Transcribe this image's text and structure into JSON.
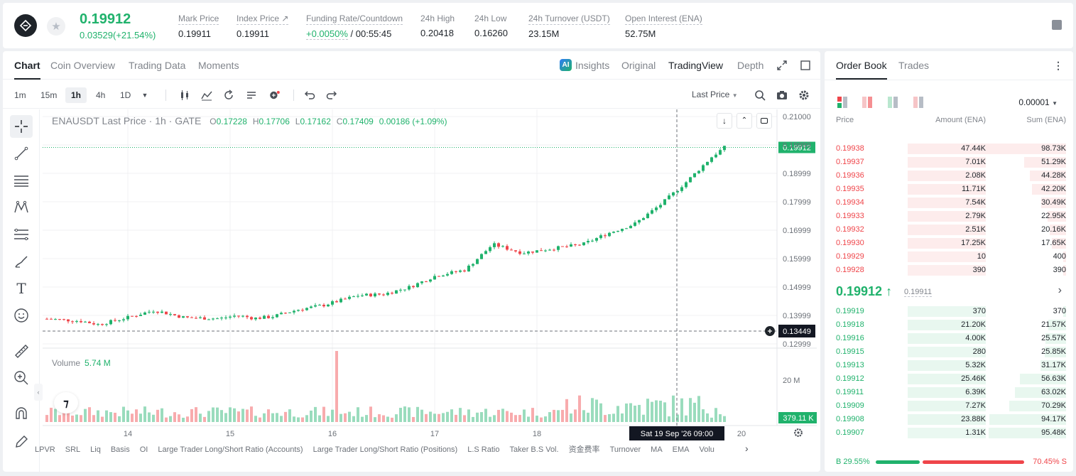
{
  "ticker": {
    "last_price": "0.19912",
    "change": "0.03529(+21.54%)",
    "stats": [
      {
        "label": "Mark Price",
        "value": "0.19911"
      },
      {
        "label": "Index Price ↗",
        "value": "0.19911"
      },
      {
        "label": "Funding Rate/Countdown",
        "value_green": "+0.0050%",
        "value": " / 00:55:45"
      },
      {
        "label": "24h High",
        "value": "0.20418"
      },
      {
        "label": "24h Low",
        "value": "0.16260"
      },
      {
        "label": "24h Turnover (USDT)",
        "value": "23.15M"
      },
      {
        "label": "Open Interest (ENA)",
        "value": "52.75M"
      }
    ]
  },
  "chart_tabs": [
    "Chart",
    "Coin Overview",
    "Trading Data",
    "Moments"
  ],
  "view_tabs": {
    "insights": "Insights",
    "original": "Original",
    "tradingview": "TradingView",
    "depth": "Depth",
    "ai_badge": "AI"
  },
  "timeframes": [
    "1m",
    "15m",
    "1h",
    "4h",
    "1D"
  ],
  "price_source": "Last Price",
  "legend": {
    "title": "ENAUSDT Last Price · 1h · GATE",
    "o_label": "O",
    "o": "0.17228",
    "h_label": "H",
    "h": "0.17706",
    "l_label": "L",
    "l": "0.17162",
    "c_label": "C",
    "c": "0.17409",
    "chg": "0.00186 (+1.09%)"
  },
  "volume_legend": {
    "label": "Volume",
    "value": "5.74 M"
  },
  "price_axis": [
    "0.21000",
    "0.19999",
    "0.18999",
    "0.17999",
    "0.16999",
    "0.15999",
    "0.14999",
    "0.13999",
    "0.12999"
  ],
  "price_tag": "0.19912",
  "cursor_tag": "0.13449",
  "volume_axis": "20 M",
  "volume_tag": "379.11 K",
  "time_axis": [
    "14",
    "15",
    "16",
    "17",
    "18",
    "20"
  ],
  "crosshair_time": "Sat 19 Sep '26   09:00",
  "indicators": [
    "LPVR",
    "SRL",
    "Liq",
    "Basis",
    "OI",
    "Large Trader Long/Short Ratio (Accounts)",
    "Large Trader Long/Short Ratio (Positions)",
    "L.S Ratio",
    "Taker B.S Vol.",
    "资金费率",
    "Turnover",
    "MA",
    "EMA",
    "Volu"
  ],
  "orderbook": {
    "tabs": [
      "Order Book",
      "Trades"
    ],
    "precision": "0.00001",
    "headers": {
      "price": "Price",
      "amount": "Amount (ENA)",
      "sum": "Sum (ENA)"
    },
    "asks": [
      {
        "price": "0.19938",
        "amount": "47.44K",
        "sum": "98.73K"
      },
      {
        "price": "0.19937",
        "amount": "7.01K",
        "sum": "51.29K"
      },
      {
        "price": "0.19936",
        "amount": "2.08K",
        "sum": "44.28K"
      },
      {
        "price": "0.19935",
        "amount": "11.71K",
        "sum": "42.20K"
      },
      {
        "price": "0.19934",
        "amount": "7.54K",
        "sum": "30.49K"
      },
      {
        "price": "0.19933",
        "amount": "2.79K",
        "sum": "22.95K"
      },
      {
        "price": "0.19932",
        "amount": "2.51K",
        "sum": "20.16K"
      },
      {
        "price": "0.19930",
        "amount": "17.25K",
        "sum": "17.65K"
      },
      {
        "price": "0.19929",
        "amount": "10",
        "sum": "400"
      },
      {
        "price": "0.19928",
        "amount": "390",
        "sum": "390"
      }
    ],
    "mid_price": "0.19912 ↑",
    "mark_price": "0.19911",
    "bids": [
      {
        "price": "0.19919",
        "amount": "370",
        "sum": "370"
      },
      {
        "price": "0.19918",
        "amount": "21.20K",
        "sum": "21.57K"
      },
      {
        "price": "0.19916",
        "amount": "4.00K",
        "sum": "25.57K"
      },
      {
        "price": "0.19915",
        "amount": "280",
        "sum": "25.85K"
      },
      {
        "price": "0.19913",
        "amount": "5.32K",
        "sum": "31.17K"
      },
      {
        "price": "0.19912",
        "amount": "25.46K",
        "sum": "56.63K"
      },
      {
        "price": "0.19911",
        "amount": "6.39K",
        "sum": "63.02K"
      },
      {
        "price": "0.19909",
        "amount": "7.27K",
        "sum": "70.29K"
      },
      {
        "price": "0.19908",
        "amount": "23.88K",
        "sum": "94.17K"
      },
      {
        "price": "0.19907",
        "amount": "1.31K",
        "sum": "95.48K"
      }
    ],
    "buy_ratio": "B 29.55%",
    "sell_ratio": "70.45% S",
    "buy_ratio_value": 29.55
  },
  "colors": {
    "up": "#20b26c",
    "down": "#ef454a"
  }
}
